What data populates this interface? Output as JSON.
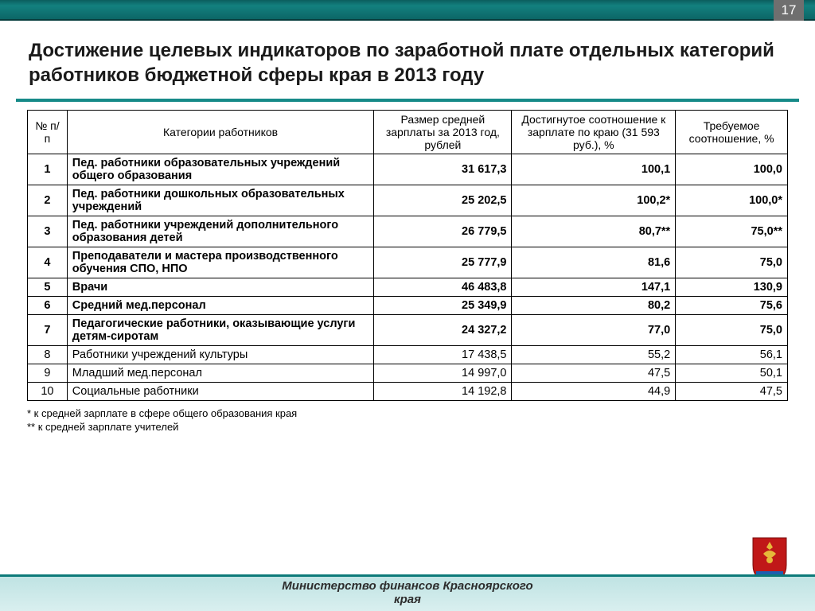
{
  "page_number": "17",
  "title": "Достижение целевых индикаторов по заработной плате отдельных категорий работников бюджетной сферы края в 2013 году",
  "columns": [
    "№\nп/п",
    "Категории работников",
    "Размер средней зарплаты за 2013 год, рублей",
    "Достигнутое соотношение\nк зарплате по краю\n(31 593 руб.), %",
    "Требуемое соотношение,\n%"
  ],
  "rows": [
    {
      "bold": true,
      "n": "1",
      "cat": "Пед. работники образовательных учреждений общего образования",
      "sal": "31 617,3",
      "ach": "100,1",
      "req": "100,0"
    },
    {
      "bold": true,
      "n": "2",
      "cat": "Пед. работники дошкольных образовательных учреждений",
      "sal": "25 202,5",
      "ach": "100,2*",
      "req": "100,0*"
    },
    {
      "bold": true,
      "n": "3",
      "cat": "Пед. работники учреждений дополнительного образования детей",
      "sal": "26 779,5",
      "ach": "80,7**",
      "req": "75,0**"
    },
    {
      "bold": true,
      "n": "4",
      "cat": "Преподаватели и мастера производственного обучения СПО, НПО",
      "sal": "25 777,9",
      "ach": "81,6",
      "req": "75,0"
    },
    {
      "bold": true,
      "n": "5",
      "cat": "Врачи",
      "sal": "46 483,8",
      "ach": "147,1",
      "req": "130,9"
    },
    {
      "bold": true,
      "n": "6",
      "cat": "Средний мед.персонал",
      "sal": "25 349,9",
      "ach": "80,2",
      "req": "75,6"
    },
    {
      "bold": true,
      "n": "7",
      "cat": "Педагогические работники, оказывающие услуги детям-сиротам",
      "sal": "24 327,2",
      "ach": "77,0",
      "req": "75,0"
    },
    {
      "bold": false,
      "n": "8",
      "cat": "Работники учреждений культуры",
      "sal": "17 438,5",
      "ach": "55,2",
      "req": "56,1"
    },
    {
      "bold": false,
      "n": "9",
      "cat": "Младший мед.персонал",
      "sal": "14 997,0",
      "ach": "47,5",
      "req": "50,1"
    },
    {
      "bold": false,
      "n": "10",
      "cat": "Социальные работники",
      "sal": "14 192,8",
      "ach": "44,9",
      "req": "47,5"
    }
  ],
  "notes": [
    "* к средней зарплате в сфере общего образования края",
    "** к средней зарплате учителей"
  ],
  "footer_line1": "Министерство финансов Красноярского",
  "footer_line2": "края",
  "colors": {
    "accent": "#168a88",
    "topbar_dark": "#063c3c",
    "footer_bg": "#cde9e9",
    "emblem_red": "#c01818",
    "emblem_gold": "#e6b93a",
    "emblem_blue": "#1d5fb0"
  }
}
